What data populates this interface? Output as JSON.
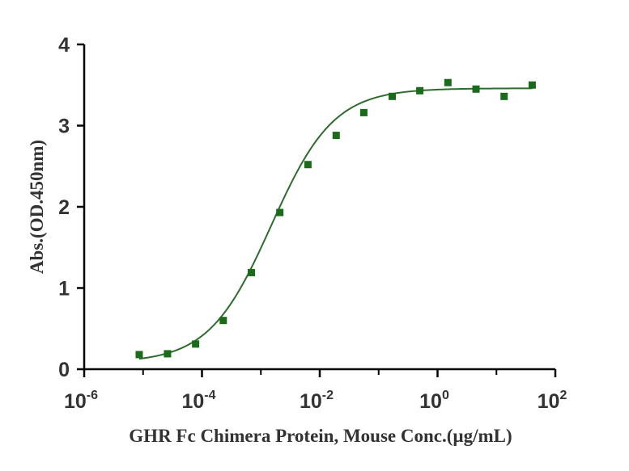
{
  "chart_data": {
    "type": "scatter",
    "xscale": "log",
    "xlabel": "GHR Fc Chimera Protein, Mouse Conc.(µg/mL)",
    "ylabel": "Abs.(OD.450nm)",
    "xlim": [
      1e-06,
      100
    ],
    "ylim": [
      0,
      4
    ],
    "x_ticks": [
      {
        "base": "10",
        "exp": "-6",
        "value": 1e-06
      },
      {
        "base": "10",
        "exp": "-4",
        "value": 0.0001
      },
      {
        "base": "10",
        "exp": "-2",
        "value": 0.01
      },
      {
        "base": "10",
        "exp": "0",
        "value": 1
      },
      {
        "base": "10",
        "exp": "2",
        "value": 100
      }
    ],
    "y_ticks": [
      "0",
      "1",
      "2",
      "3",
      "4"
    ],
    "grid": false,
    "marker_color": "#1a6b1a",
    "line_color": "#2e6b2e",
    "series": [
      {
        "x": [
          8.6e-06,
          2.6e-05,
          7.8e-05,
          0.00023,
          0.00069,
          0.0021,
          0.0063,
          0.019,
          0.056,
          0.17,
          0.5,
          1.5,
          4.5,
          13.5,
          40.5
        ],
        "y": [
          0.18,
          0.19,
          0.31,
          0.6,
          1.19,
          1.93,
          2.52,
          2.88,
          3.16,
          3.36,
          3.43,
          3.53,
          3.45,
          3.36,
          3.5
        ]
      }
    ],
    "fit": {
      "model": "4PL",
      "bottom": 0.08,
      "top": 3.46,
      "ec50": 0.0015,
      "hill": 0.82
    }
  }
}
